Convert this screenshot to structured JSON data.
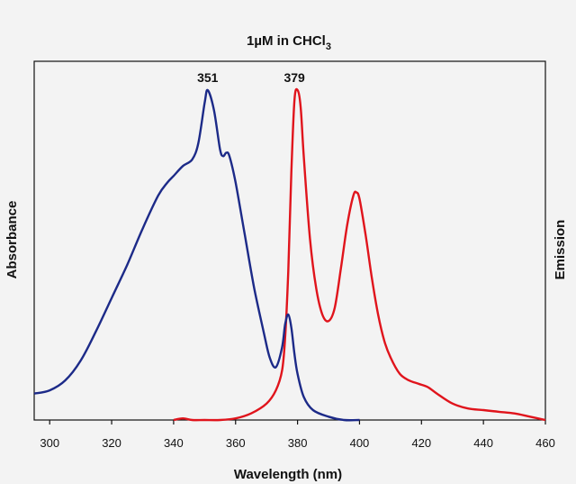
{
  "chart_data": {
    "type": "line",
    "title": {
      "main": "1µM in CHCl",
      "subscript": "3"
    },
    "xlabel": "Wavelength (nm)",
    "ylabel_left": "Absorbance",
    "ylabel_right": "Emission",
    "xlim": [
      295,
      460
    ],
    "ylim": [
      0,
      1
    ],
    "x_ticks": [
      300,
      320,
      340,
      360,
      380,
      400,
      420,
      440,
      460
    ],
    "grid": false,
    "colors": {
      "absorbance": "#1c2a88",
      "emission": "#e0141c"
    },
    "series": [
      {
        "name": "Absorbance",
        "axis": "left",
        "x": [
          295,
          300,
          305,
          310,
          315,
          320,
          325,
          330,
          335,
          338,
          340,
          343,
          346,
          348,
          350,
          351,
          353,
          355,
          356,
          357,
          358,
          360,
          363,
          366,
          369,
          371,
          373,
          375,
          376,
          377,
          378,
          379,
          380,
          382,
          385,
          390,
          395,
          400
        ],
        "y": [
          0.08,
          0.09,
          0.12,
          0.18,
          0.27,
          0.37,
          0.47,
          0.58,
          0.68,
          0.72,
          0.74,
          0.77,
          0.79,
          0.84,
          0.96,
          1.0,
          0.94,
          0.82,
          0.8,
          0.81,
          0.8,
          0.72,
          0.56,
          0.4,
          0.27,
          0.19,
          0.16,
          0.22,
          0.29,
          0.32,
          0.28,
          0.2,
          0.14,
          0.07,
          0.03,
          0.01,
          0.0,
          0.0
        ]
      },
      {
        "name": "Emission",
        "axis": "right",
        "x": [
          340,
          343,
          346,
          350,
          355,
          360,
          365,
          370,
          373,
          375,
          376,
          377,
          378,
          379,
          380,
          381,
          382,
          384,
          386,
          388,
          390,
          392,
          394,
          396,
          398,
          399,
          400,
          402,
          404,
          406,
          408,
          410,
          413,
          416,
          419,
          422,
          425,
          430,
          435,
          440,
          445,
          450,
          455,
          460
        ],
        "y": [
          0.0,
          0.005,
          0.0,
          0.0,
          0.0,
          0.005,
          0.02,
          0.05,
          0.09,
          0.15,
          0.25,
          0.45,
          0.75,
          0.97,
          1.0,
          0.95,
          0.8,
          0.55,
          0.4,
          0.32,
          0.3,
          0.34,
          0.46,
          0.59,
          0.68,
          0.69,
          0.67,
          0.56,
          0.43,
          0.32,
          0.24,
          0.19,
          0.14,
          0.12,
          0.11,
          0.1,
          0.08,
          0.05,
          0.035,
          0.03,
          0.025,
          0.02,
          0.01,
          0.0
        ]
      }
    ],
    "annotations": [
      {
        "text": "351",
        "x": 351,
        "series": "Absorbance"
      },
      {
        "text": "379",
        "x": 379,
        "series": "Emission"
      }
    ]
  }
}
